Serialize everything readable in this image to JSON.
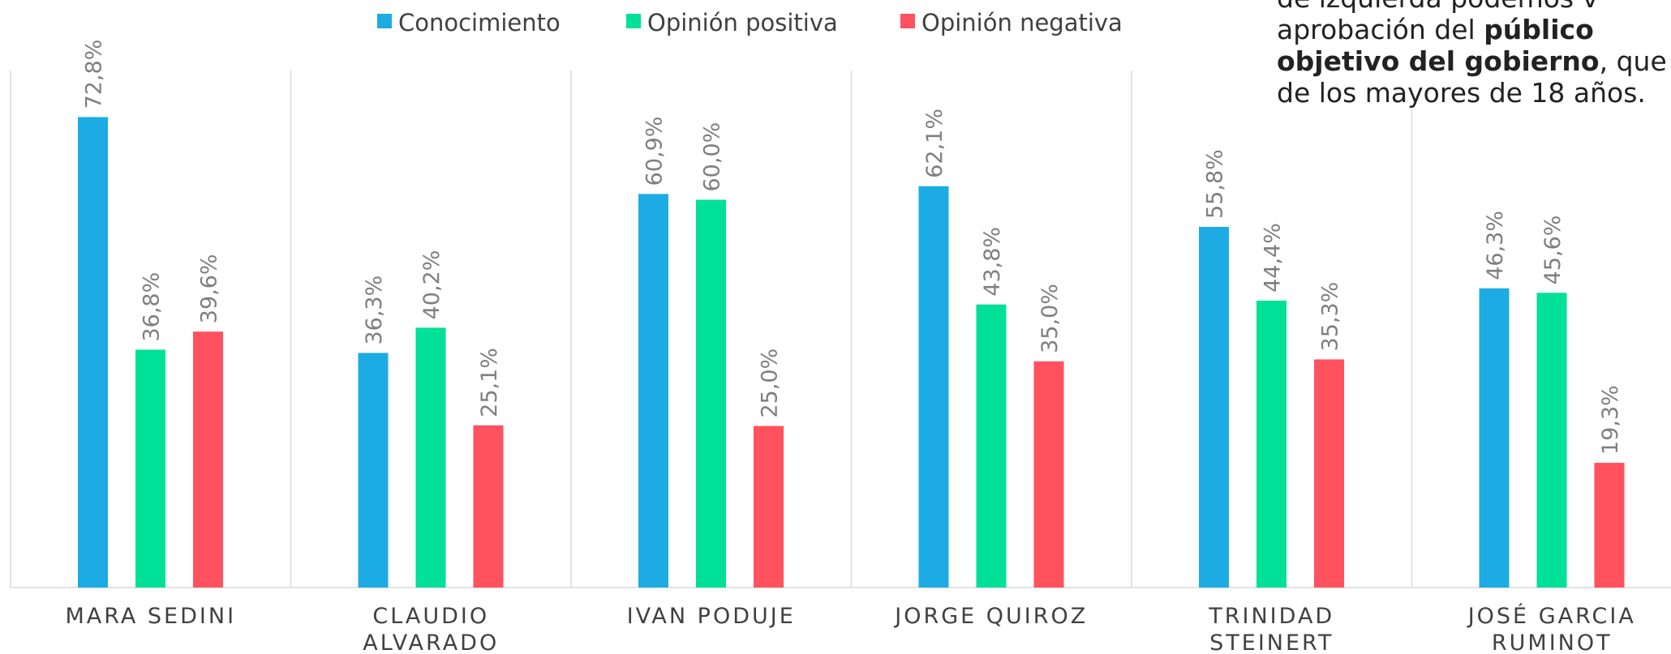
{
  "chart_data": {
    "type": "bar",
    "categories": [
      "MARA SEDINI",
      "CLAUDIO ALVARADO",
      "IVAN PODUJE",
      "JORGE QUIROZ",
      "TRINIDAD STEINERT",
      "JOSÉ GARCIA RUMINOT"
    ],
    "series": [
      {
        "name": "Conocimiento",
        "color": "#1cace3",
        "values": [
          72.8,
          36.3,
          60.9,
          62.1,
          55.8,
          46.3
        ],
        "value_labels": [
          "72,8%",
          "36,3%",
          "60,9%",
          "62,1%",
          "55,8%",
          "46,3%"
        ]
      },
      {
        "name": "Opinión positiva",
        "color": "#00e096",
        "values": [
          36.8,
          40.2,
          60.0,
          43.8,
          44.4,
          45.6
        ],
        "value_labels": [
          "36,8%",
          "40,2%",
          "60,0%",
          "43,8%",
          "44,4%",
          "45,6%"
        ]
      },
      {
        "name": "Opinión negativa",
        "color": "#ff515e",
        "values": [
          39.6,
          25.1,
          25.0,
          35.0,
          35.3,
          19.3
        ],
        "value_labels": [
          "39,6%",
          "25,1%",
          "25,0%",
          "35,0%",
          "35,3%",
          "19,3%"
        ]
      }
    ],
    "ylim": [
      0,
      80
    ]
  },
  "annotation": [
    [
      "de izquierda podemos v"
    ],
    [
      "aprobación del ",
      "público"
    ],
    [
      "objetivo del gobierno",
      ", que"
    ],
    [
      "de los mayores de 18 años."
    ]
  ]
}
